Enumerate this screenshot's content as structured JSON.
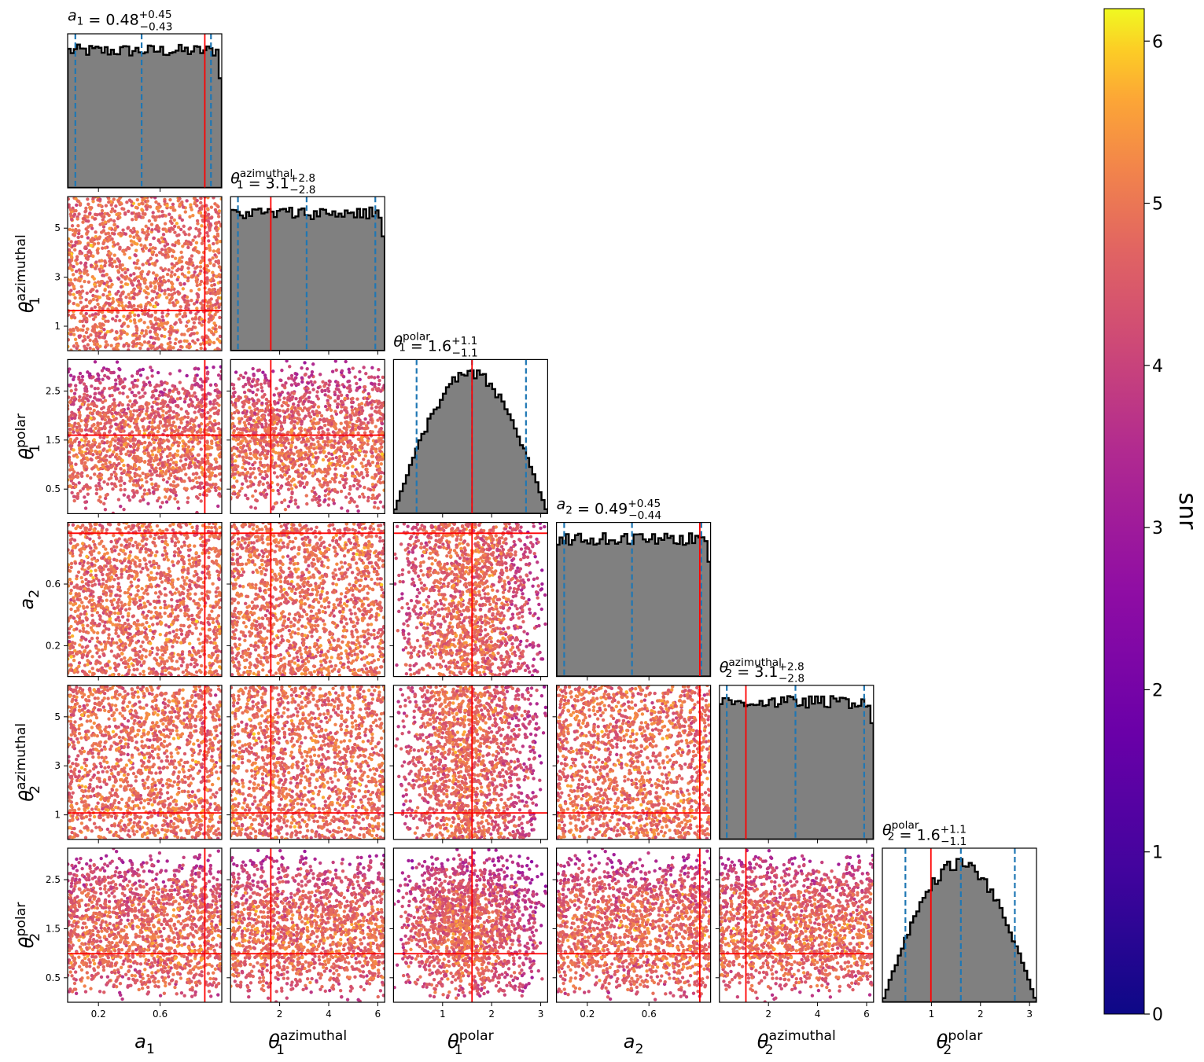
{
  "chart_data": {
    "type": "scatter",
    "title": "",
    "parameters": [
      {
        "key": "a1",
        "base": "a",
        "sub": "1",
        "sup": "",
        "range": [
          0,
          1
        ],
        "ticks": [
          0.2,
          0.6
        ],
        "tick_labels": [
          "0.2",
          "0.6"
        ],
        "truth": 0.89,
        "title": {
          "value": "0.48",
          "plus": "+0.45",
          "minus": "−0.43"
        },
        "quantiles": [
          0.05,
          0.48,
          0.93
        ]
      },
      {
        "key": "t1az",
        "base": "θ",
        "sub": "1",
        "sup": "azimuthal",
        "range": [
          0,
          6.283
        ],
        "ticks": [
          1,
          3,
          5
        ],
        "xticks": [
          2,
          4,
          6
        ],
        "tick_labels": [
          "1",
          "3",
          "5"
        ],
        "xtick_labels": [
          "2",
          "4",
          "6"
        ],
        "truth": 1.64,
        "title": {
          "value": "3.1",
          "plus": "+2.8",
          "minus": "−2.8"
        },
        "quantiles": [
          0.3,
          3.1,
          5.9
        ]
      },
      {
        "key": "t1po",
        "base": "θ",
        "sub": "1",
        "sup": "polar",
        "range": [
          0,
          3.1416
        ],
        "ticks": [
          0.5,
          1.5,
          2.5
        ],
        "xticks": [
          1,
          2,
          3
        ],
        "tick_labels": [
          "0.5",
          "1.5",
          "2.5"
        ],
        "xtick_labels": [
          "1",
          "2",
          "3"
        ],
        "truth": 1.6,
        "title": {
          "value": "1.6",
          "plus": "+1.1",
          "minus": "−1.1"
        },
        "quantiles": [
          0.47,
          1.6,
          2.7
        ]
      },
      {
        "key": "a2",
        "base": "a",
        "sub": "2",
        "sup": "",
        "range": [
          0,
          1
        ],
        "ticks": [
          0.2,
          0.6
        ],
        "tick_labels": [
          "0.2",
          "0.6"
        ],
        "truth": 0.93,
        "title": {
          "value": "0.49",
          "plus": "+0.45",
          "minus": "−0.44"
        },
        "quantiles": [
          0.05,
          0.49,
          0.94
        ]
      },
      {
        "key": "t2az",
        "base": "θ",
        "sub": "2",
        "sup": "azimuthal",
        "range": [
          0,
          6.283
        ],
        "ticks": [
          1,
          3,
          5
        ],
        "xticks": [
          2,
          4,
          6
        ],
        "tick_labels": [
          "1",
          "3",
          "5"
        ],
        "xtick_labels": [
          "2",
          "4",
          "6"
        ],
        "truth": 1.08,
        "title": {
          "value": "3.1",
          "plus": "+2.8",
          "minus": "−2.8"
        },
        "quantiles": [
          0.3,
          3.1,
          5.9
        ]
      },
      {
        "key": "t2po",
        "base": "θ",
        "sub": "2",
        "sup": "polar",
        "range": [
          0,
          3.1416
        ],
        "ticks": [
          0.5,
          1.5,
          2.5
        ],
        "xticks": [
          1,
          2,
          3
        ],
        "tick_labels": [
          "0.5",
          "1.5",
          "2.5"
        ],
        "xtick_labels": [
          "1",
          "2",
          "3"
        ],
        "truth": 0.99,
        "title": {
          "value": "1.6",
          "plus": "+1.1",
          "minus": "−1.1"
        },
        "quantiles": [
          0.47,
          1.6,
          2.7
        ]
      }
    ],
    "diagonal": {
      "type": "histogram",
      "fill": "#808080",
      "edge": "#000000",
      "quantile_color": "#1f77b4",
      "truth_color": "#ff0000"
    },
    "offdiagonal": {
      "type": "scatter",
      "color_by": "snr",
      "truth_color": "#ff0000"
    },
    "colorbar": {
      "label": "snr",
      "range": [
        0,
        6.2
      ],
      "ticks": [
        0,
        1,
        2,
        3,
        4,
        5,
        6
      ],
      "tick_labels": [
        "0",
        "1",
        "2",
        "3",
        "4",
        "5",
        "6"
      ],
      "colormap": "plasma"
    }
  }
}
